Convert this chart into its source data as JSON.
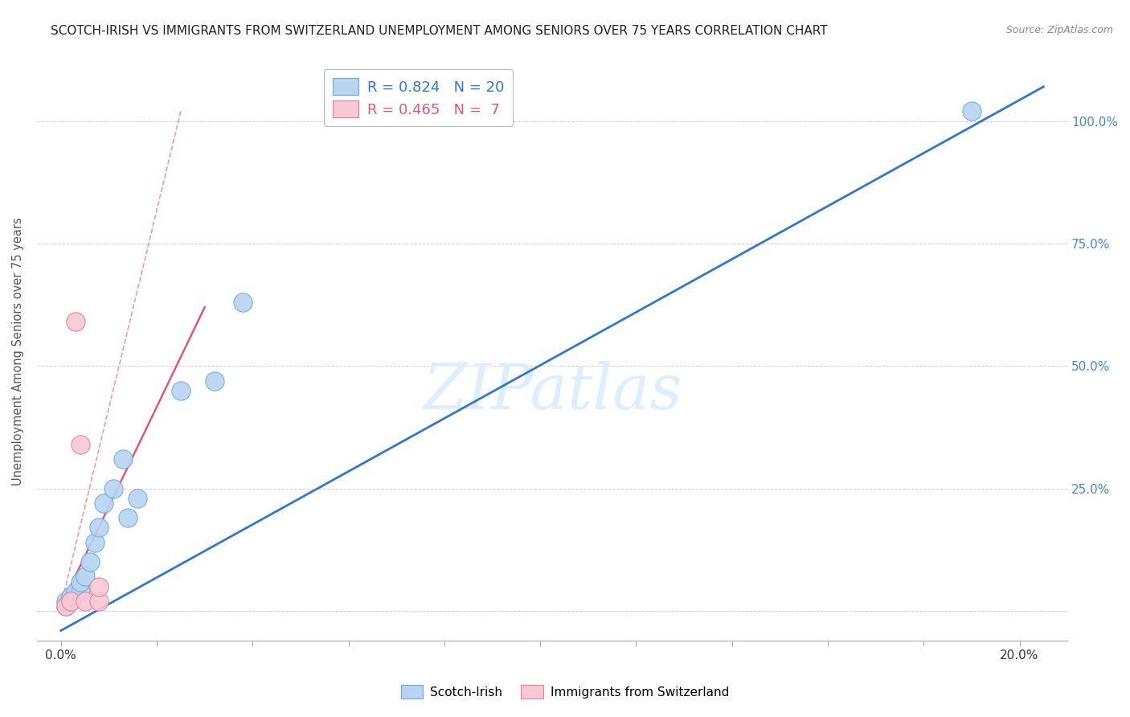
{
  "title": "SCOTCH-IRISH VS IMMIGRANTS FROM SWITZERLAND UNEMPLOYMENT AMONG SENIORS OVER 75 YEARS CORRELATION CHART",
  "source": "Source: ZipAtlas.com",
  "ylabel": "Unemployment Among Seniors over 75 years",
  "watermark": "ZIPatlas",
  "blue_series": {
    "label": "Scotch-Irish",
    "R": 0.824,
    "N": 20,
    "color": "#b8d4f0",
    "edge_color": "#6aaae0",
    "line_color": "#3377cc",
    "scatter_x": [
      0.001,
      0.001,
      0.002,
      0.002,
      0.003,
      0.004,
      0.004,
      0.005,
      0.006,
      0.007,
      0.008,
      0.009,
      0.011,
      0.013,
      0.014,
      0.016,
      0.025,
      0.032,
      0.038,
      0.19
    ],
    "scatter_y": [
      0.01,
      0.02,
      0.02,
      0.03,
      0.04,
      0.04,
      0.06,
      0.07,
      0.1,
      0.14,
      0.17,
      0.22,
      0.25,
      0.31,
      0.19,
      0.23,
      0.45,
      0.47,
      0.63,
      1.02
    ],
    "reg_line_x": [
      0.0,
      0.205
    ],
    "reg_line_y": [
      -0.04,
      1.07
    ]
  },
  "pink_series": {
    "label": "Immigrants from Switzerland",
    "R": 0.465,
    "N": 7,
    "color": "#f8c8d4",
    "edge_color": "#e08098",
    "line_color": "#e05878",
    "scatter_x": [
      0.001,
      0.002,
      0.003,
      0.004,
      0.005,
      0.008,
      0.008
    ],
    "scatter_y": [
      0.01,
      0.02,
      0.59,
      0.34,
      0.02,
      0.02,
      0.05
    ],
    "reg_line_x": [
      0.0,
      0.03
    ],
    "reg_line_y": [
      0.01,
      0.62
    ],
    "dashed_line_x": [
      0.0,
      0.025
    ],
    "dashed_line_y": [
      0.01,
      1.02
    ]
  },
  "ytick_labels": [
    "100.0%",
    "75.0%",
    "50.0%",
    "25.0%",
    ""
  ],
  "ytick_positions": [
    1.0,
    0.75,
    0.5,
    0.25,
    0.0
  ],
  "xtick_positions": [
    0.0,
    0.02,
    0.04,
    0.06,
    0.08,
    0.1,
    0.12,
    0.14,
    0.16,
    0.18,
    0.2
  ],
  "xlim": [
    -0.005,
    0.21
  ],
  "ylim": [
    -0.06,
    1.12
  ],
  "background_color": "#ffffff",
  "grid_color": "#cccccc",
  "title_fontsize": 11,
  "axis_label_color": "#4488cc"
}
